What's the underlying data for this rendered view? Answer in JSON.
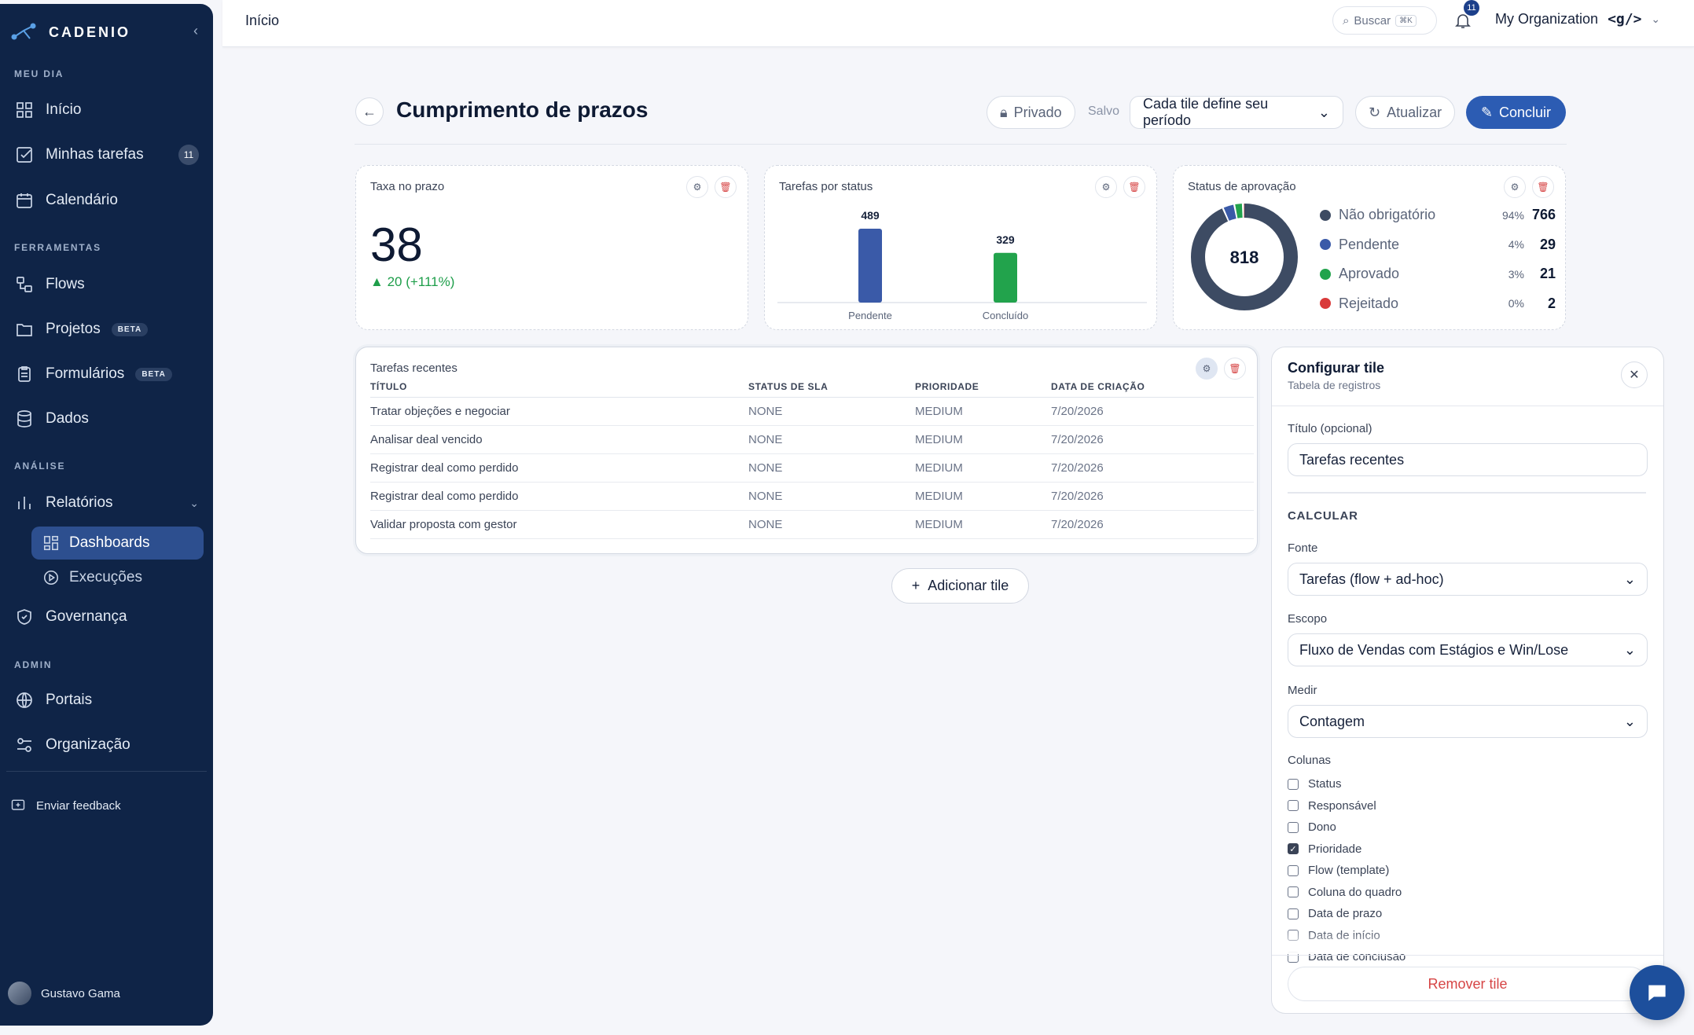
{
  "app": {
    "brand": "CADENIO"
  },
  "sidebar": {
    "sections": {
      "my_day": "MEU DIA",
      "tools": "FERRAMENTAS",
      "analysis": "ANÁLISE",
      "admin": "ADMIN"
    },
    "items": {
      "inicio": "Início",
      "tarefas": "Minhas tarefas",
      "tarefas_count": "11",
      "calendario": "Calendário",
      "flows": "Flows",
      "projetos": "Projetos",
      "formularios": "Formulários",
      "beta": "BETA",
      "dados": "Dados",
      "relatorios": "Relatórios",
      "dashboards": "Dashboards",
      "execucoes": "Execuções",
      "governanca": "Governança",
      "portais": "Portais",
      "organizacao": "Organização",
      "feedback": "Enviar feedback"
    },
    "user": {
      "name": "Gustavo Gama"
    }
  },
  "topbar": {
    "breadcrumb": "Início",
    "search_label": "Buscar",
    "search_shortcut": "⌘K",
    "notif_count": "11",
    "org_name": "My Organization",
    "org_logo": "<g/>"
  },
  "page": {
    "title": "Cumprimento de prazos",
    "privacy_label": "Privado",
    "saved_label": "Salvo",
    "period_select": "Cada tile define seu período",
    "refresh_label": "Atualizar",
    "done_label": "Concluir",
    "add_tile_label": "Adicionar tile"
  },
  "tiles": {
    "rate": {
      "title": "Taxa no prazo",
      "value": "38",
      "delta": "20 (+111%)"
    },
    "status": {
      "title": "Tarefas por status"
    },
    "approval": {
      "title": "Status de aprovação",
      "total": "818",
      "legend": [
        {
          "label": "Não obrigatório",
          "pct": "94%",
          "value": "766",
          "color": "#3d4b63"
        },
        {
          "label": "Pendente",
          "pct": "4%",
          "value": "29",
          "color": "#3a5aa8"
        },
        {
          "label": "Aprovado",
          "pct": "3%",
          "value": "21",
          "color": "#22a34c"
        },
        {
          "label": "Rejeitado",
          "pct": "0%",
          "value": "2",
          "color": "#d93a3a"
        }
      ]
    },
    "table": {
      "title": "Tarefas recentes",
      "columns": [
        "TÍTULO",
        "STATUS DE SLA",
        "PRIORIDADE",
        "DATA DE CRIAÇÃO"
      ],
      "rows": [
        [
          "Tratar objeções e negociar",
          "NONE",
          "MEDIUM",
          "7/20/2026"
        ],
        [
          "Analisar deal vencido",
          "NONE",
          "MEDIUM",
          "7/20/2026"
        ],
        [
          "Registrar deal como perdido",
          "NONE",
          "MEDIUM",
          "7/20/2026"
        ],
        [
          "Registrar deal como perdido",
          "NONE",
          "MEDIUM",
          "7/20/2026"
        ],
        [
          "Validar proposta com gestor",
          "NONE",
          "MEDIUM",
          "7/20/2026"
        ]
      ]
    }
  },
  "chart_data": {
    "type": "bar",
    "title": "Tarefas por status",
    "categories": [
      "Pendente",
      "Concluído"
    ],
    "values": [
      489,
      329
    ],
    "colors": [
      "#3a5aa8",
      "#22a34c"
    ]
  },
  "config_panel": {
    "title": "Configurar tile",
    "subtitle": "Tabela de registros",
    "title_label": "Título (opcional)",
    "title_value": "Tarefas recentes",
    "calc_label": "CALCULAR",
    "source_label": "Fonte",
    "source_value": "Tarefas (flow + ad-hoc)",
    "scope_label": "Escopo",
    "scope_value": "Fluxo de Vendas com Estágios e Win/Lose",
    "measure_label": "Medir",
    "measure_value": "Contagem",
    "columns_label": "Colunas",
    "columns": [
      {
        "label": "Status",
        "checked": false
      },
      {
        "label": "Responsável",
        "checked": false
      },
      {
        "label": "Dono",
        "checked": false
      },
      {
        "label": "Prioridade",
        "checked": true
      },
      {
        "label": "Flow (template)",
        "checked": false
      },
      {
        "label": "Coluna do quadro",
        "checked": false
      },
      {
        "label": "Data de prazo",
        "checked": false
      },
      {
        "label": "Data de início",
        "checked": false
      },
      {
        "label": "Data de conclusão",
        "checked": false
      }
    ],
    "remove_label": "Remover tile"
  }
}
